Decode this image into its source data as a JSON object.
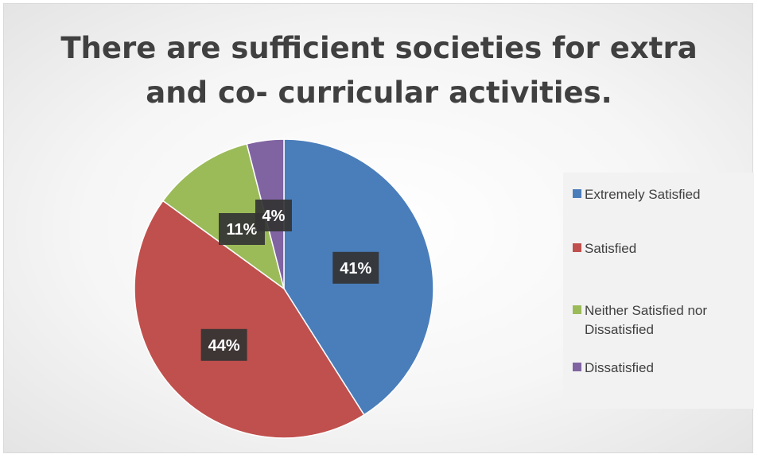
{
  "chart_data": {
    "type": "pie",
    "title": "There are sufficient societies for extra and co- curricular activities.",
    "slices": [
      {
        "label": "Extremely Satisfied",
        "value": 41,
        "display": "41%",
        "color": "#4a7ebb"
      },
      {
        "label": "Satisfied",
        "value": 44,
        "display": "44%",
        "color": "#c0504d"
      },
      {
        "label": "Neither Satisfied nor Dissatisfied",
        "value": 11,
        "display": "11%",
        "color": "#9bbb59"
      },
      {
        "label": "Dissatisfied",
        "value": 4,
        "display": "4%",
        "color": "#8064a2"
      }
    ],
    "legend_position": "right",
    "start_angle": "12 o'clock",
    "direction": "clockwise"
  }
}
